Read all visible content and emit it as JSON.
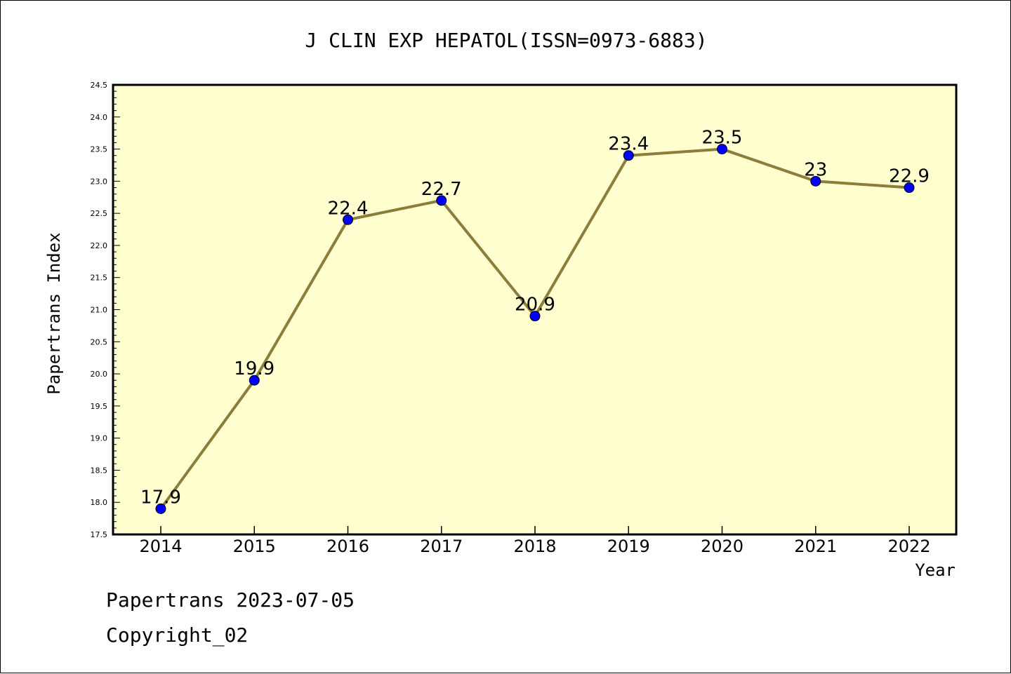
{
  "chart_data": {
    "type": "line",
    "title": "J CLIN EXP HEPATOL(ISSN=0973-6883)",
    "xlabel": "Year",
    "ylabel": "Papertrans Index",
    "categories": [
      "2014",
      "2015",
      "2016",
      "2017",
      "2018",
      "2019",
      "2020",
      "2021",
      "2022"
    ],
    "series": [
      {
        "values": [
          17.9,
          19.9,
          22.4,
          22.7,
          20.9,
          23.4,
          23.5,
          23,
          22.9
        ]
      }
    ],
    "data_labels": [
      "17.9",
      "19.9",
      "22.4",
      "22.7",
      "20.9",
      "23.4",
      "23.5",
      "23",
      "22.9"
    ],
    "ylim": [
      17.5,
      24.5
    ],
    "yticks": [
      "17.5",
      "18.0",
      "18.5",
      "19.0",
      "19.5",
      "20.0",
      "20.5",
      "21.0",
      "21.5",
      "22.0",
      "22.5",
      "23.0",
      "23.5",
      "24.0",
      "24.5"
    ],
    "grid": false,
    "colors": {
      "plot_background": "#ffffd0",
      "line": "#8b7d3a",
      "marker": "#0000ff"
    }
  },
  "footer": {
    "line1": "Papertrans 2023-07-05",
    "line2": "Copyright_02"
  }
}
